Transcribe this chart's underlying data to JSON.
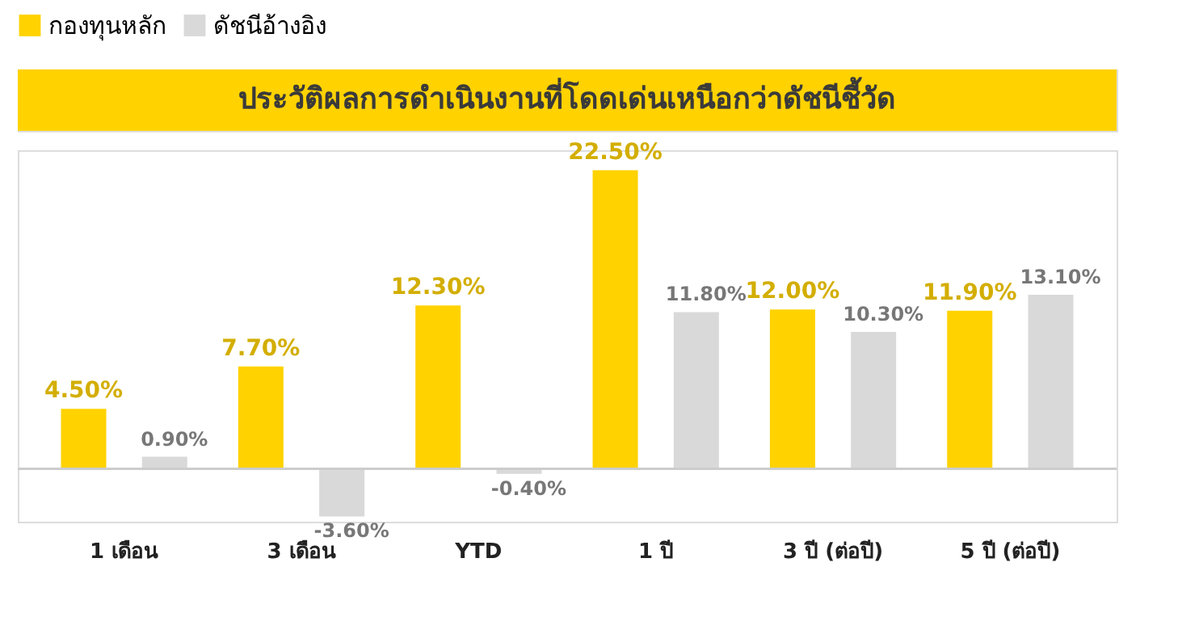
{
  "chart_data": {
    "type": "bar",
    "title": "ประวัติผลการดำเนินงานที่โดดเด่นเหนือกว่าดัชนีชี้วัด",
    "categories": [
      "1 เดือน",
      "3 เดือน",
      "YTD",
      "1 ปี",
      "3 ปี (ต่อปี)",
      "5 ปี (ต่อปี)"
    ],
    "series": [
      {
        "name": "กองทุนหลัก",
        "color": "#ffd200",
        "values": [
          4.5,
          7.7,
          12.3,
          22.5,
          12.0,
          11.9
        ],
        "value_labels": [
          "4.50%",
          "7.70%",
          "12.30%",
          "22.50%",
          "12.00%",
          "11.90%"
        ]
      },
      {
        "name": "ดัชนีอ้างอิง",
        "color": "#d9d9d9",
        "values": [
          0.9,
          -3.6,
          -0.4,
          11.8,
          10.3,
          13.1
        ],
        "value_labels": [
          "0.90%",
          "-3.60%",
          "-0.40%",
          "11.80%",
          "10.30%",
          "13.10%"
        ]
      }
    ],
    "legend": "top",
    "grid": false
  }
}
